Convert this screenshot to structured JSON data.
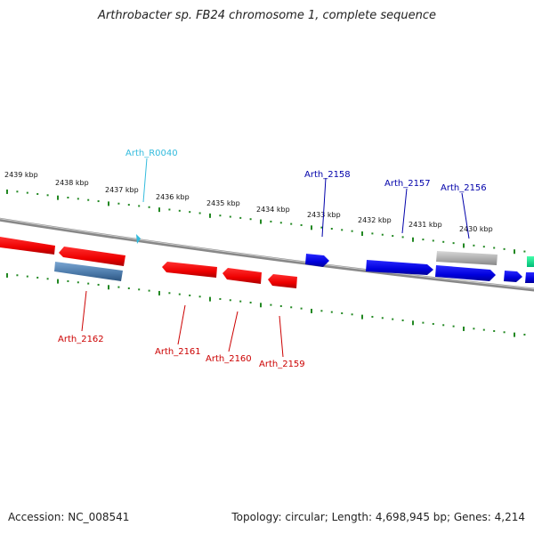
{
  "title": "Arthrobacter sp. FB24 chromosome 1, complete sequence",
  "footer": {
    "accession": "Accession: NC_008541",
    "summary": "Topology: circular; Length: 4,698,945 bp; Genes: 4,214"
  },
  "colors": {
    "forward_gene": "#0000dd",
    "reverse_gene": "#ee0000",
    "rna": "#33bbdd",
    "pseudo_gray": "#aaaaaa",
    "steel": "#4a78a8",
    "tick": "#228822",
    "backbone": "#888888",
    "green_gene": "#00dd88"
  },
  "scale_labels": [
    "2439 kbp",
    "2438 kbp",
    "2437 kbp",
    "2436 kbp",
    "2435 kbp",
    "2434 kbp",
    "2433 kbp",
    "2432 kbp",
    "2431 kbp",
    "2430 kbp"
  ],
  "genes": {
    "Arth_R0040": "Arth_R0040",
    "Arth_2158": "Arth_2158",
    "Arth_2157": "Arth_2157",
    "Arth_2156": "Arth_2156",
    "Arth_2162": "Arth_2162",
    "Arth_2161": "Arth_2161",
    "Arth_2160": "Arth_2160",
    "Arth_2159": "Arth_2159"
  }
}
